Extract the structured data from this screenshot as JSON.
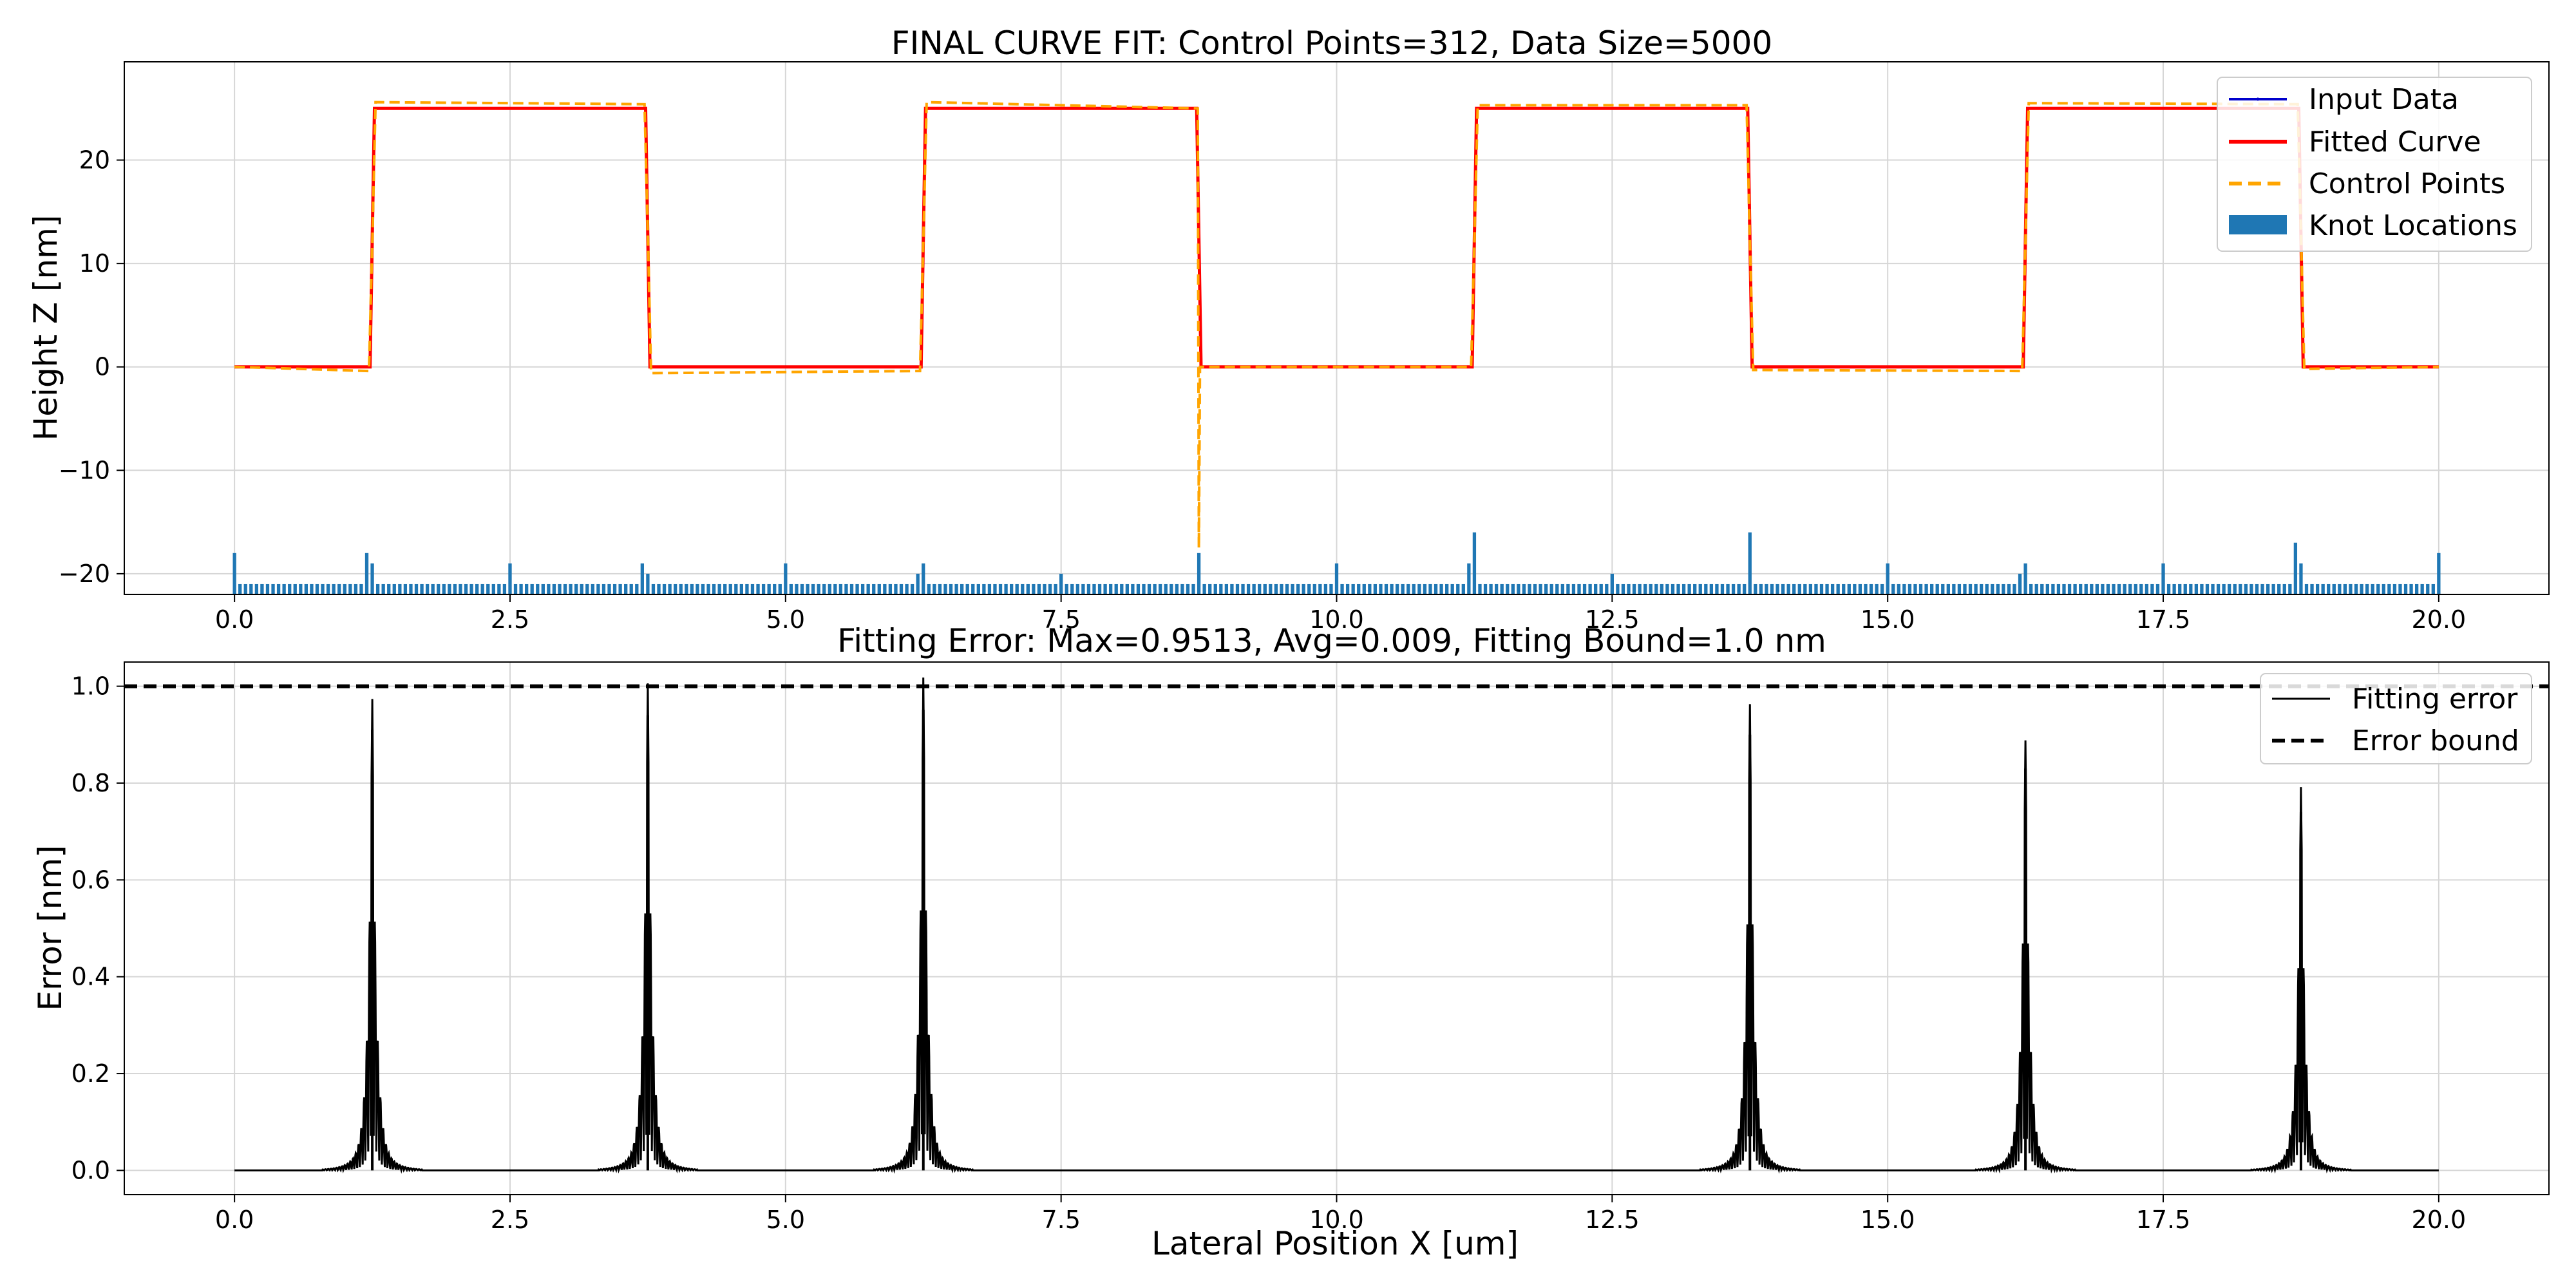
{
  "figure": {
    "xlabel": "Lateral Position X [um]"
  },
  "top": {
    "title": "FINAL CURVE FIT: Control Points=312, Data Size=5000",
    "ylabel": "Height Z [nm]",
    "legend": [
      "Input Data",
      "Fitted Curve",
      "Control Points",
      "Knot Locations"
    ]
  },
  "bottom": {
    "title": "Fitting Error: Max=0.9513, Avg=0.009, Fitting Bound=1.0 nm",
    "ylabel": "Error [nm]",
    "legend": [
      "Fitting error",
      "Error bound"
    ]
  },
  "colors": {
    "input": "#0000cc",
    "fitted": "#ff0000",
    "control": "#ffa500",
    "knots": "#1f77b4",
    "error": "#000000",
    "bound": "#000000"
  },
  "chart_data": [
    {
      "type": "line",
      "title": "FINAL CURVE FIT: Control Points=312, Data Size=5000",
      "xlabel": "",
      "ylabel": "Height Z [nm]",
      "xlim": [
        -1,
        21
      ],
      "ylim": [
        -22,
        29.5
      ],
      "xticks": [
        0.0,
        2.5,
        5.0,
        7.5,
        10.0,
        12.5,
        15.0,
        17.5,
        20.0
      ],
      "yticks": [
        -20,
        -10,
        0,
        10,
        20
      ],
      "grid": true,
      "legend_position": "top-right",
      "series": [
        {
          "name": "Input Data",
          "x": [
            0,
            1.23,
            1.27,
            3.73,
            3.77,
            6.23,
            6.27,
            8.73,
            8.77,
            11.23,
            11.27,
            13.73,
            13.77,
            16.23,
            16.27,
            18.73,
            18.77,
            20
          ],
          "y": [
            0,
            0,
            25,
            25,
            0,
            0,
            25,
            25,
            0,
            0,
            25,
            25,
            0,
            0,
            25,
            25,
            0,
            0
          ]
        },
        {
          "name": "Fitted Curve",
          "x": [
            0,
            1.23,
            1.27,
            3.73,
            3.77,
            6.23,
            6.27,
            8.73,
            8.77,
            11.23,
            11.27,
            13.73,
            13.77,
            16.23,
            16.27,
            18.73,
            18.77,
            20
          ],
          "y": [
            0,
            0,
            25,
            25,
            0,
            0,
            25,
            25,
            0,
            0,
            25,
            25,
            0,
            0,
            25,
            25,
            0,
            0
          ]
        },
        {
          "name": "Control Points",
          "x": [
            0,
            1.22,
            1.25,
            1.28,
            3.72,
            3.75,
            3.78,
            6.22,
            6.25,
            6.28,
            8.74,
            8.75,
            8.76,
            11.22,
            11.25,
            11.28,
            13.72,
            13.75,
            13.78,
            16.22,
            16.25,
            16.28,
            18.72,
            18.75,
            18.78,
            20
          ],
          "y": [
            0,
            -0.4,
            12,
            25.6,
            25.4,
            13,
            -0.6,
            -0.4,
            12,
            25.6,
            25,
            -17.5,
            0,
            0,
            12,
            25.3,
            25.3,
            12,
            -0.3,
            -0.4,
            12,
            25.5,
            25.4,
            13,
            -0.2,
            0
          ]
        },
        {
          "name": "Knot Locations",
          "type": "histogram",
          "bin_width": 0.05,
          "baseline": -22,
          "unit_height": 1,
          "tall_bins": [
            {
              "x": 0.0,
              "count": 4
            },
            {
              "x": 1.2,
              "count": 4
            },
            {
              "x": 1.25,
              "count": 3
            },
            {
              "x": 2.5,
              "count": 3
            },
            {
              "x": 3.7,
              "count": 3
            },
            {
              "x": 3.75,
              "count": 2
            },
            {
              "x": 5.0,
              "count": 3
            },
            {
              "x": 6.2,
              "count": 2
            },
            {
              "x": 6.25,
              "count": 3
            },
            {
              "x": 7.5,
              "count": 2
            },
            {
              "x": 8.75,
              "count": 4
            },
            {
              "x": 10.0,
              "count": 3
            },
            {
              "x": 11.2,
              "count": 3
            },
            {
              "x": 11.25,
              "count": 6
            },
            {
              "x": 12.5,
              "count": 2
            },
            {
              "x": 13.75,
              "count": 6
            },
            {
              "x": 15.0,
              "count": 3
            },
            {
              "x": 16.2,
              "count": 2
            },
            {
              "x": 16.25,
              "count": 3
            },
            {
              "x": 17.5,
              "count": 3
            },
            {
              "x": 18.7,
              "count": 5
            },
            {
              "x": 18.75,
              "count": 3
            },
            {
              "x": 20.0,
              "count": 4
            }
          ]
        }
      ]
    },
    {
      "type": "line",
      "title": "Fitting Error: Max=0.9513, Avg=0.009, Fitting Bound=1.0 nm",
      "xlabel": "Lateral Position X [um]",
      "ylabel": "Error [nm]",
      "xlim": [
        -1,
        21
      ],
      "ylim": [
        -0.05,
        1.05
      ],
      "xticks": [
        0.0,
        2.5,
        5.0,
        7.5,
        10.0,
        12.5,
        15.0,
        17.5,
        20.0
      ],
      "yticks": [
        0.0,
        0.2,
        0.4,
        0.6,
        0.8,
        1.0
      ],
      "grid": true,
      "legend_position": "top-right",
      "series": [
        {
          "name": "Fitting error",
          "spikes": [
            {
              "x": 1.25,
              "peak": 0.91
            },
            {
              "x": 3.75,
              "peak": 0.94
            },
            {
              "x": 6.25,
              "peak": 0.9513
            },
            {
              "x": 13.75,
              "peak": 0.9
            },
            {
              "x": 16.25,
              "peak": 0.83
            },
            {
              "x": 18.75,
              "peak": 0.74
            }
          ]
        },
        {
          "name": "Error bound",
          "y": 1.0
        }
      ]
    }
  ]
}
